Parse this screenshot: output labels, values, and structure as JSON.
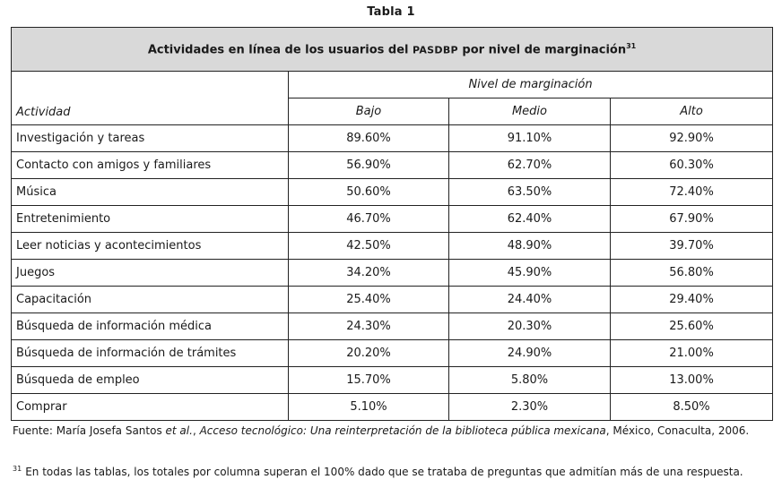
{
  "caption": "Tabla 1",
  "table": {
    "title_part1": "Actividades en línea de los usuarios del ",
    "title_acronym": "PASDBP",
    "title_part2": " por nivel de marginación",
    "title_footnote_ref": "31",
    "group_header": "Nivel de marginación",
    "activity_header": "Actividad",
    "columns": [
      "Bajo",
      "Medio",
      "Alto"
    ],
    "rows": [
      {
        "activity": "Investigación y tareas",
        "bajo": "89.60%",
        "medio": "91.10%",
        "alto": "92.90%"
      },
      {
        "activity": "Contacto con amigos y familiares",
        "bajo": "56.90%",
        "medio": "62.70%",
        "alto": "60.30%"
      },
      {
        "activity": "Música",
        "bajo": "50.60%",
        "medio": "63.50%",
        "alto": "72.40%"
      },
      {
        "activity": "Entretenimiento",
        "bajo": "46.70%",
        "medio": "62.40%",
        "alto": "67.90%"
      },
      {
        "activity": "Leer noticias y acontecimientos",
        "bajo": "42.50%",
        "medio": "48.90%",
        "alto": "39.70%"
      },
      {
        "activity": "Juegos",
        "bajo": "34.20%",
        "medio": "45.90%",
        "alto": "56.80%"
      },
      {
        "activity": "Capacitación",
        "bajo": "25.40%",
        "medio": "24.40%",
        "alto": "29.40%"
      },
      {
        "activity": "Búsqueda de información médica",
        "bajo": "24.30%",
        "medio": "20.30%",
        "alto": "25.60%"
      },
      {
        "activity": "Búsqueda de información de trámites",
        "bajo": "20.20%",
        "medio": "24.90%",
        "alto": "21.00%"
      },
      {
        "activity": "Búsqueda de empleo",
        "bajo": "15.70%",
        "medio": "5.80%",
        "alto": "13.00%"
      },
      {
        "activity": "Comprar",
        "bajo": "5.10%",
        "medio": "2.30%",
        "alto": "8.50%"
      }
    ]
  },
  "source": {
    "prefix": "Fuente: María Josefa Santos ",
    "etal": "et al.",
    "sep": ", ",
    "work": "Acceso tecnológico: Una reinterpretación de la biblioteca pública mexicana",
    "suffix": ", México, Conaculta, 2006."
  },
  "footnote": {
    "number": "31",
    "text": "En todas las tablas, los totales por columna superan el 100% dado que se trataba de preguntas que admitían más de una respuesta."
  }
}
